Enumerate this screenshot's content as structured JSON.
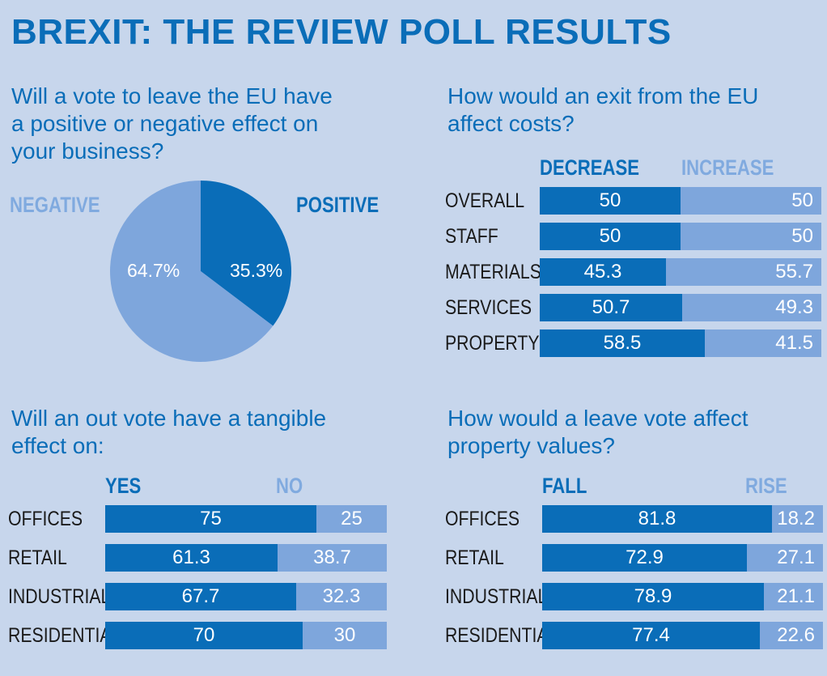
{
  "title": "BREXIT: THE REVIEW POLL RESULTS",
  "colors": {
    "dark": "#0a6db8",
    "light": "#7ea6dc",
    "background": "#c7d6ec"
  },
  "chart_data": [
    {
      "type": "pie",
      "title_lines": [
        "Will a vote to leave the EU have",
        "a positive or negative effect on",
        "your business?"
      ],
      "labels": [
        "POSITIVE",
        "NEGATIVE"
      ],
      "values": [
        35.3,
        64.7
      ],
      "value_labels": [
        "35.3%",
        "64.7%"
      ]
    },
    {
      "type": "bar",
      "stacked": true,
      "title_lines": [
        "How would an exit from the EU",
        "affect costs?"
      ],
      "categories": [
        "OVERALL",
        "STAFF",
        "MATERIALS",
        "SERVICES",
        "PROPERTY"
      ],
      "series": [
        {
          "name": "DECREASE",
          "values": [
            50,
            50,
            45.3,
            50.7,
            58.5
          ]
        },
        {
          "name": "INCREASE",
          "values": [
            50,
            50,
            55.7,
            49.3,
            41.5
          ]
        }
      ]
    },
    {
      "type": "bar",
      "stacked": true,
      "title_lines": [
        "Will an out vote have a tangible",
        "effect on:"
      ],
      "categories": [
        "OFFICES",
        "RETAIL",
        "INDUSTRIAL",
        "RESIDENTIAL"
      ],
      "series": [
        {
          "name": "YES",
          "values": [
            75,
            61.3,
            67.7,
            70
          ]
        },
        {
          "name": "NO",
          "values": [
            25,
            38.7,
            32.3,
            30
          ]
        }
      ]
    },
    {
      "type": "bar",
      "stacked": true,
      "title_lines": [
        "How would a leave vote affect",
        "property values?"
      ],
      "categories": [
        "OFFICES",
        "RETAIL",
        "INDUSTRIAL",
        "RESIDENTIAL"
      ],
      "series": [
        {
          "name": "FALL",
          "values": [
            81.8,
            72.9,
            78.9,
            77.4
          ]
        },
        {
          "name": "RISE",
          "values": [
            18.2,
            27.1,
            21.1,
            22.6
          ]
        }
      ]
    }
  ]
}
